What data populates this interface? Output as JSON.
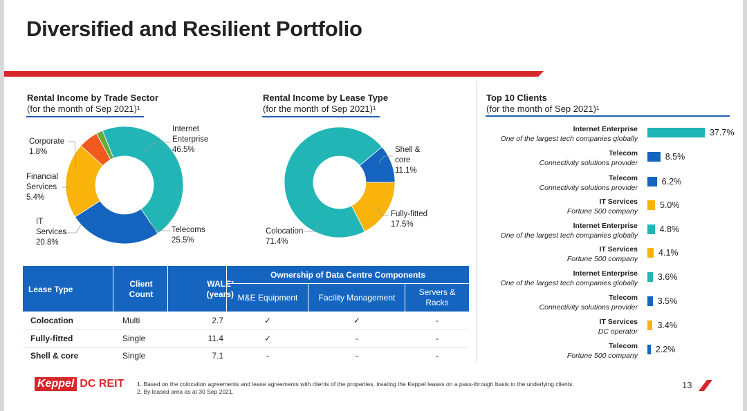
{
  "page": {
    "title": "Diversified and Resilient Portfolio",
    "page_number": "13"
  },
  "colors": {
    "teal": "#21b5b5",
    "blue": "#1565c0",
    "yellow": "#f9b30a",
    "orange": "#f05a1e",
    "green": "#6aaa3a",
    "red": "#d7262c"
  },
  "sections": {
    "sector": {
      "title": "Rental Income by Trade Sector",
      "subtitle": "(for the month of Sep 2021)¹"
    },
    "lease": {
      "title": "Rental Income by Lease Type",
      "subtitle": "(for the month of Sep 2021)¹"
    },
    "clients": {
      "title": "Top 10 Clients",
      "subtitle": "(for the month of Sep 2021)¹"
    }
  },
  "chart_data": [
    {
      "type": "pie",
      "title": "Rental Income by Trade Sector",
      "slices": [
        {
          "label": "Internet Enterprise",
          "value": 46.5,
          "display": "Internet\nEnterprise\n46.5%",
          "color": "#21b5b5"
        },
        {
          "label": "Telecoms",
          "value": 25.5,
          "display": "Telecoms\n25.5%",
          "color": "#1565c0"
        },
        {
          "label": "IT Services",
          "value": 20.8,
          "display": "IT\nServices\n20.8%",
          "color": "#f9b30a"
        },
        {
          "label": "Financial Services",
          "value": 5.4,
          "display": "Financial\nServices\n5.4%",
          "color": "#f05a1e"
        },
        {
          "label": "Corporate",
          "value": 1.8,
          "display": "Corporate\n1.8%",
          "color": "#6aaa3a"
        }
      ]
    },
    {
      "type": "pie",
      "title": "Rental Income by Lease Type",
      "slices": [
        {
          "label": "Shell & core",
          "value": 11.1,
          "display": "Shell &\ncore\n11.1%",
          "color": "#1565c0"
        },
        {
          "label": "Fully-fitted",
          "value": 17.5,
          "display": "Fully-fitted\n17.5%",
          "color": "#f9b30a"
        },
        {
          "label": "Colocation",
          "value": 71.4,
          "display": "Colocation\n71.4%",
          "color": "#21b5b5"
        }
      ]
    },
    {
      "type": "bar",
      "title": "Top 10 Clients",
      "categories": [
        {
          "name": "Internet Enterprise",
          "desc": "One of the largest tech companies globally"
        },
        {
          "name": "Telecom",
          "desc": "Connectivity solutions provider"
        },
        {
          "name": "Telecom",
          "desc": "Connectivity solutions provider"
        },
        {
          "name": "IT Services",
          "desc": "Fortune 500 company"
        },
        {
          "name": "Internet Enterprise",
          "desc": "One of the largest tech companies globally"
        },
        {
          "name": "IT Services",
          "desc": "Fortune 500 company"
        },
        {
          "name": "Internet Enterprise",
          "desc": "One of the largest tech companies globally"
        },
        {
          "name": "Telecom",
          "desc": "Connectivity solutions provider"
        },
        {
          "name": "IT Services",
          "desc": "DC operator"
        },
        {
          "name": "Telecom",
          "desc": "Fortune 500 company"
        }
      ],
      "values": [
        37.7,
        8.5,
        6.2,
        5.0,
        4.8,
        4.1,
        3.6,
        3.5,
        3.4,
        2.2
      ],
      "value_labels": [
        "37.7%",
        "8.5%",
        "6.2%",
        "5.0%",
        "4.8%",
        "4.1%",
        "3.6%",
        "3.5%",
        "3.4%",
        "2.2%"
      ],
      "colors": [
        "#21b5b5",
        "#1565c0",
        "#1565c0",
        "#f9b30a",
        "#21b5b5",
        "#f9b30a",
        "#21b5b5",
        "#1565c0",
        "#f9b30a",
        "#1565c0"
      ]
    }
  ],
  "table": {
    "headers": {
      "lease_type": "Lease Type",
      "client_count": "Client\nCount",
      "wale": "WALE²\n(years)",
      "ownership": "Ownership of Data Centre Components",
      "me": "M&E Equipment",
      "facility": "Facility Management",
      "servers": "Servers &\nRacks"
    },
    "rows": [
      {
        "lease": "Colocation",
        "count": "Multi",
        "wale": "2.7",
        "me": "✓",
        "facility": "✓",
        "servers": "-"
      },
      {
        "lease": "Fully-fitted",
        "count": "Single",
        "wale": "11.4",
        "me": "✓",
        "facility": "-",
        "servers": "-"
      },
      {
        "lease": "Shell & core",
        "count": "Single",
        "wale": "7.1",
        "me": "-",
        "facility": "-",
        "servers": "-"
      }
    ]
  },
  "footer": {
    "logo_keppel": "Keppel",
    "logo_dcreit": "DC REIT",
    "notes": [
      "1.   Based on the colocation agreements and lease agreements with clients of the properties, treating the Keppel leases on a pass-through basis to the underlying clients.",
      "2.   By leased area as at 30 Sep 2021."
    ]
  }
}
